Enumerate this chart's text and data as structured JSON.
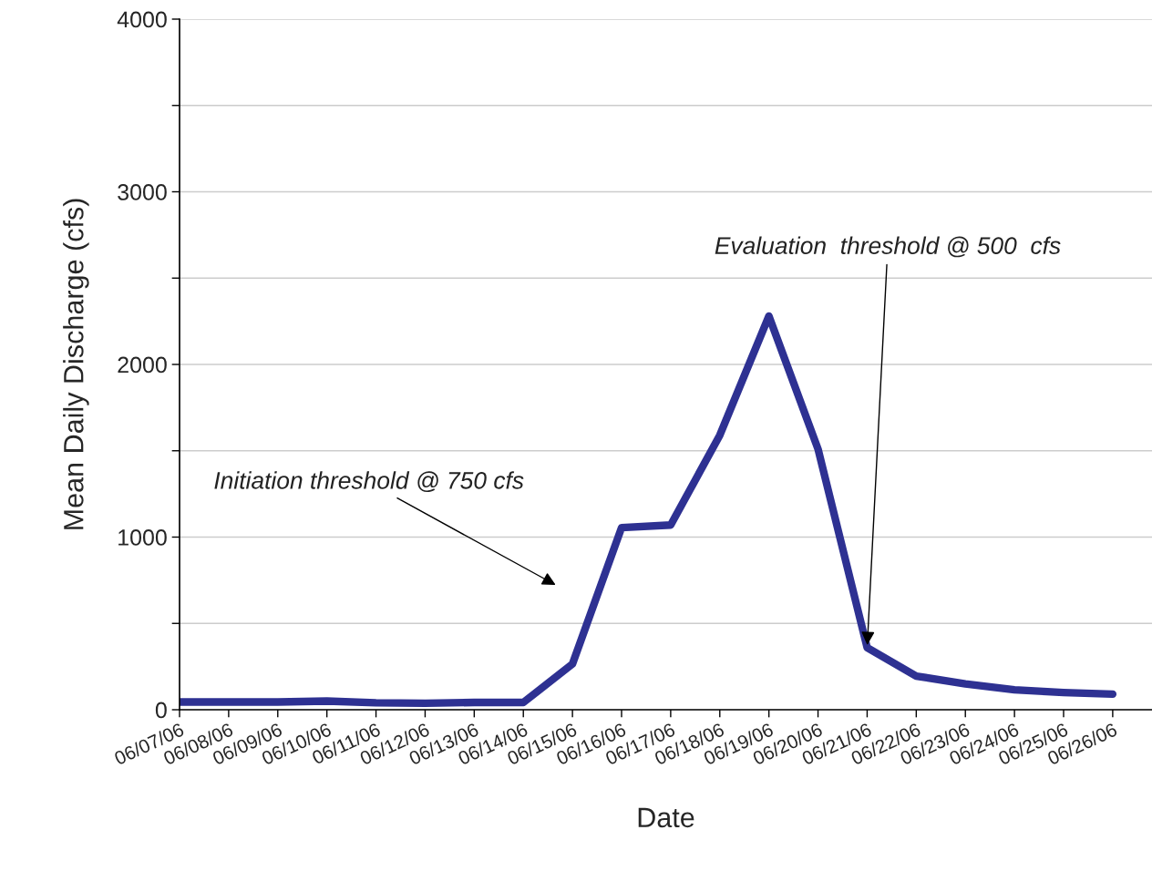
{
  "chart_data": {
    "type": "line",
    "xlabel": "Date",
    "ylabel": "Mean Daily Discharge (cfs)",
    "categories": [
      "06/07/06",
      "06/08/06",
      "06/09/06",
      "06/10/06",
      "06/11/06",
      "06/12/06",
      "06/13/06",
      "06/14/06",
      "06/15/06",
      "06/16/06",
      "06/17/06",
      "06/18/06",
      "06/19/06",
      "06/20/06",
      "06/21/06",
      "06/22/06",
      "06/23/06",
      "06/24/06",
      "06/25/06",
      "06/26/06"
    ],
    "series": [
      {
        "color": "#2e3192",
        "values": [
          45,
          45,
          45,
          50,
          40,
          38,
          42,
          42,
          265,
          1055,
          1070,
          1590,
          2280,
          1510,
          360,
          195,
          150,
          115,
          100,
          90
        ]
      }
    ],
    "ylim": [
      0,
      4000
    ],
    "yticks": [
      0,
      {
        "value": 500,
        "label": null
      },
      1000,
      {
        "value": 1500,
        "label": null
      },
      2000,
      {
        "value": 2500,
        "label": null
      },
      3000,
      {
        "value": 3500,
        "label": null
      },
      4000
    ],
    "grid": "y",
    "marker": "none",
    "line_style": "solid",
    "legend": false,
    "annotations": [
      "Initiation threshold @ 750 cfs",
      {
        "text": "Evaluation  threshold @ 500  cfs",
        "x": "06/21/06",
        "y": 360
      }
    ]
  }
}
